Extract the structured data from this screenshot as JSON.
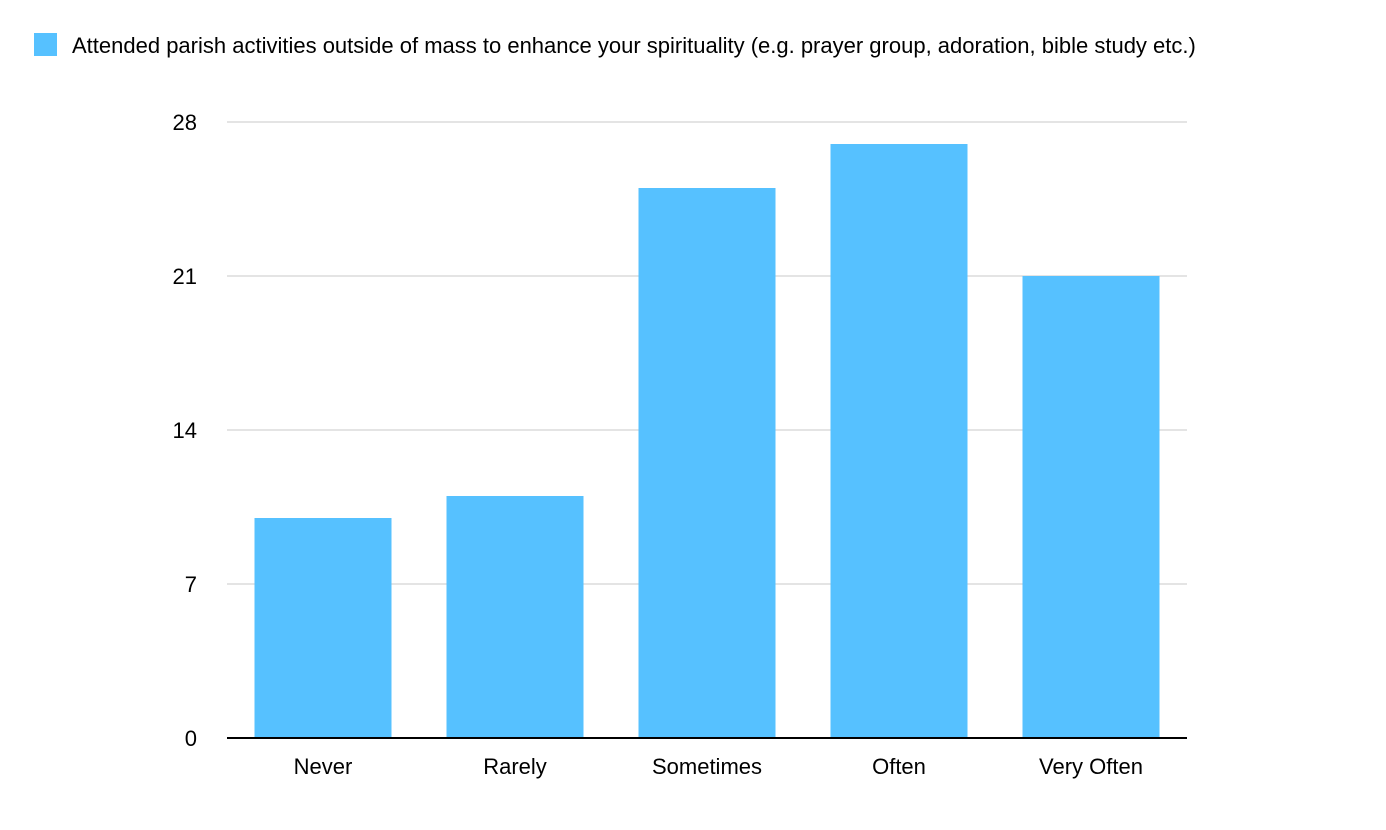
{
  "chart_data": {
    "type": "bar",
    "categories": [
      "Never",
      "Rarely",
      "Sometimes",
      "Often",
      "Very Often"
    ],
    "series": [
      {
        "name": "Attended parish activities outside of mass to enhance your spirituality (e.g. prayer group, adoration, bible study etc.)",
        "values": [
          10,
          11,
          25,
          27,
          21
        ],
        "color": "#56C1FF"
      }
    ],
    "yticks": [
      "0",
      "7",
      "14",
      "21",
      "28"
    ],
    "ylim": [
      0,
      28
    ],
    "grid": true,
    "legend_position": "top-left",
    "colors": {
      "grid": "#c8c8c8",
      "axis": "#000000"
    }
  }
}
